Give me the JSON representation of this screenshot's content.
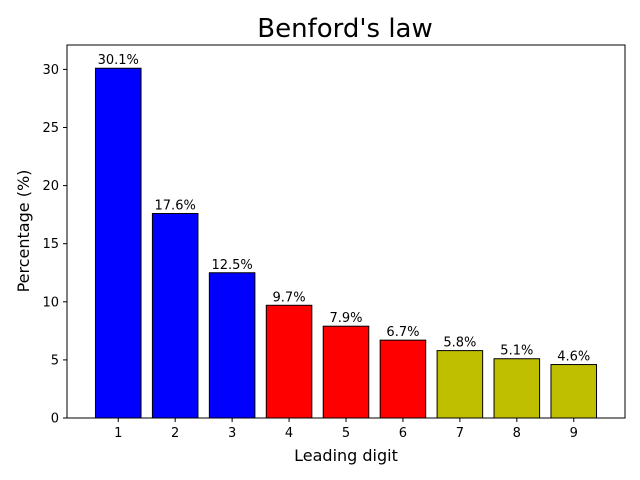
{
  "chart_data": {
    "type": "bar",
    "title": "Benford's law",
    "xlabel": "Leading digit",
    "ylabel": "Percentage (%)",
    "categories": [
      "1",
      "2",
      "3",
      "4",
      "5",
      "6",
      "7",
      "8",
      "9"
    ],
    "values": [
      30.1,
      17.6,
      12.5,
      9.7,
      7.9,
      6.7,
      5.8,
      5.1,
      4.6
    ],
    "data_labels": [
      "30.1%",
      "17.6%",
      "12.5%",
      "9.7%",
      "7.9%",
      "6.7%",
      "5.8%",
      "5.1%",
      "4.6%"
    ],
    "bar_colors": [
      "#0000ff",
      "#0000ff",
      "#0000ff",
      "#ff0000",
      "#ff0000",
      "#ff0000",
      "#bfbf00",
      "#bfbf00",
      "#bfbf00"
    ],
    "bar_edge_color": "#000000",
    "ylim": [
      0,
      32.1
    ],
    "yticks": [
      0,
      5,
      10,
      15,
      20,
      25,
      30
    ],
    "grid": false,
    "legend": "none"
  }
}
